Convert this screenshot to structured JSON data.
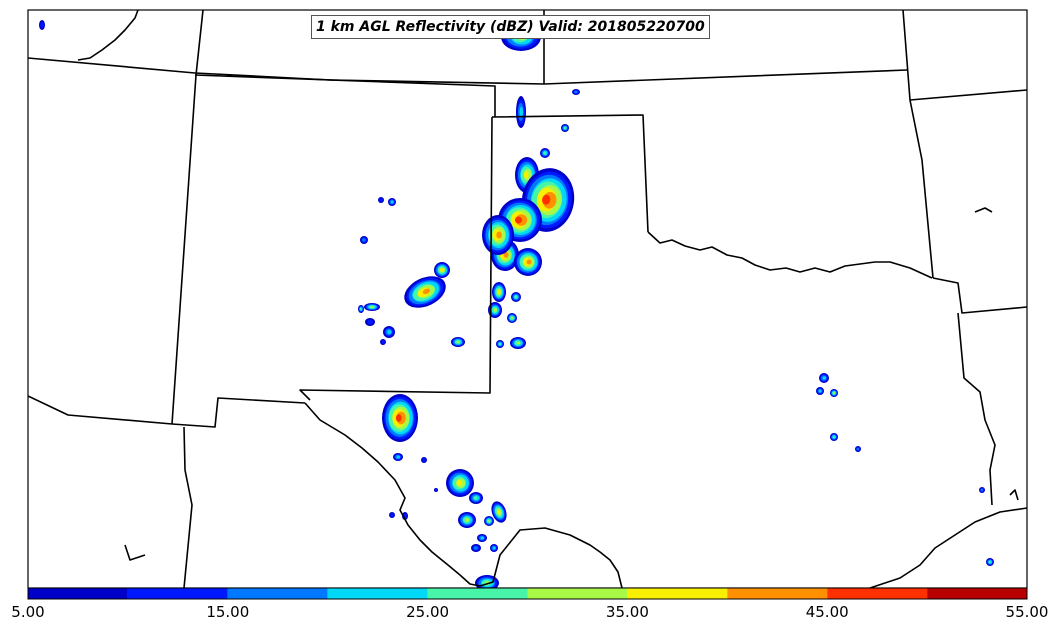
{
  "title": "1 km AGL Reflectivity (dBZ) Valid: 201805220700",
  "variable": "1 km AGL Reflectivity",
  "units": "dBZ",
  "valid_time": "201805220700",
  "colorbar": {
    "min": 5,
    "max": 55,
    "tick_labels": [
      "5.00",
      "15.00",
      "25.00",
      "35.00",
      "45.00",
      "55.00"
    ],
    "bins": [
      {
        "from": 5,
        "to": 10,
        "color": "#0000c8"
      },
      {
        "from": 10,
        "to": 15,
        "color": "#0018ff"
      },
      {
        "from": 15,
        "to": 20,
        "color": "#0078ff"
      },
      {
        "from": 20,
        "to": 25,
        "color": "#00d8f8"
      },
      {
        "from": 25,
        "to": 30,
        "color": "#48f4a8"
      },
      {
        "from": 30,
        "to": 35,
        "color": "#a8f848"
      },
      {
        "from": 35,
        "to": 40,
        "color": "#f8f000"
      },
      {
        "from": 40,
        "to": 45,
        "color": "#ff9000"
      },
      {
        "from": 45,
        "to": 50,
        "color": "#ff3000"
      },
      {
        "from": 50,
        "to": 55,
        "color": "#b80000"
      }
    ]
  },
  "colors": {
    "background": "#ffffff",
    "borders": "#000000"
  }
}
